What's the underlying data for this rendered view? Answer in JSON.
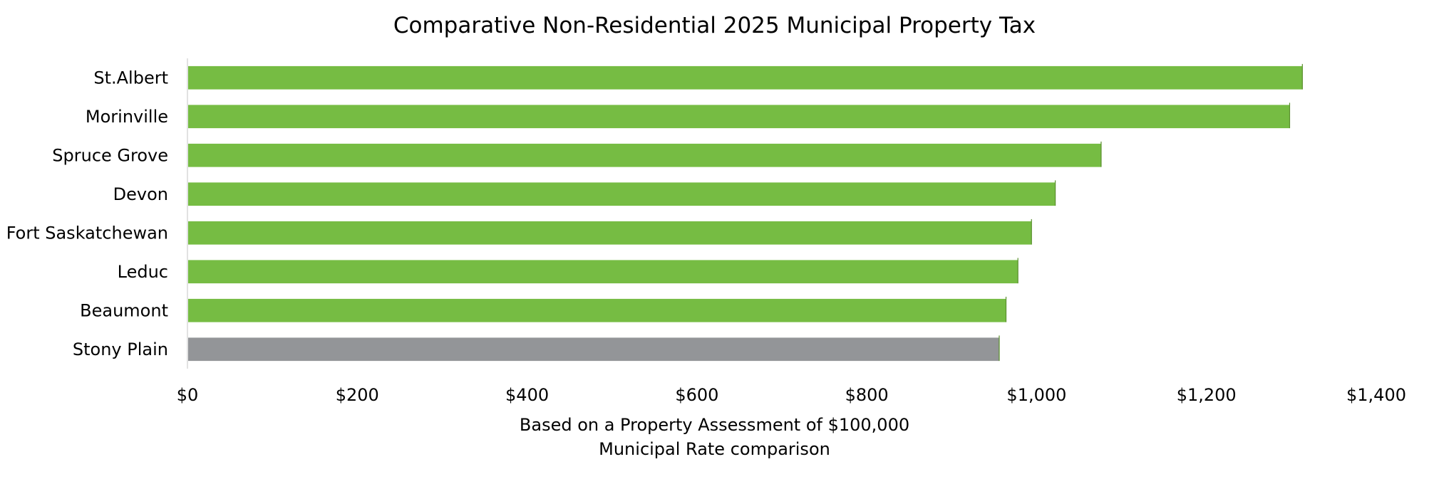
{
  "chart_data": {
    "type": "bar",
    "orientation": "horizontal",
    "title": "Comparative Non-Residential 2025 Municipal Property Tax",
    "xlabel_lines": [
      "Based on a Property Assessment of $100,000",
      "Municipal Rate comparison"
    ],
    "ylabel": "",
    "categories": [
      "St.Albert",
      "Morinville",
      "Spruce Grove",
      "Devon",
      "Fort Saskatchewan",
      "Leduc",
      "Beaumont",
      "Stony Plain"
    ],
    "values": [
      1313,
      1298,
      1076,
      1022,
      994,
      978,
      964,
      956
    ],
    "bar_colors": [
      "#76BC43",
      "#76BC43",
      "#76BC43",
      "#76BC43",
      "#76BC43",
      "#76BC43",
      "#76BC43",
      "#939598"
    ],
    "xlim": [
      0,
      1400
    ],
    "xticks": [
      0,
      200,
      400,
      600,
      800,
      1000,
      1200,
      1400
    ],
    "xtick_labels": [
      "$0",
      "$200",
      "$400",
      "$600",
      "$800",
      "$1,000",
      "$1,200",
      "$1,400"
    ],
    "grid": false,
    "legend": "none"
  }
}
